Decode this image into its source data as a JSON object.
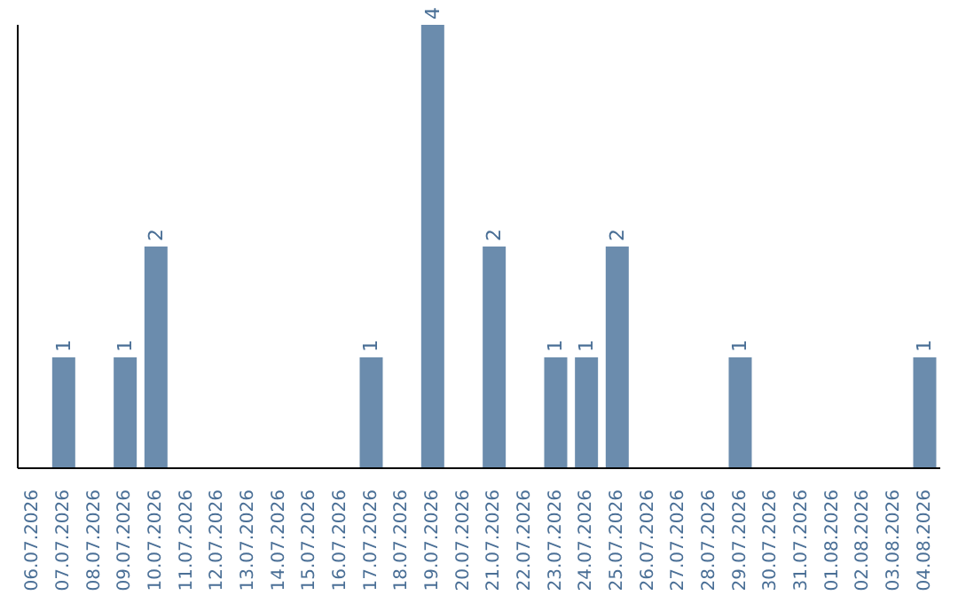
{
  "chart_data": {
    "type": "bar",
    "categories": [
      "06.07.2026",
      "07.07.2026",
      "08.07.2026",
      "09.07.2026",
      "10.07.2026",
      "11.07.2026",
      "12.07.2026",
      "13.07.2026",
      "14.07.2026",
      "15.07.2026",
      "16.07.2026",
      "17.07.2026",
      "18.07.2026",
      "19.07.2026",
      "20.07.2026",
      "21.07.2026",
      "22.07.2026",
      "23.07.2026",
      "24.07.2026",
      "25.07.2026",
      "26.07.2026",
      "27.07.2026",
      "28.07.2026",
      "29.07.2026",
      "30.07.2026",
      "31.07.2026",
      "01.08.2026",
      "02.08.2026",
      "03.08.2026",
      "04.08.2026"
    ],
    "values": [
      0,
      1,
      0,
      1,
      2,
      0,
      0,
      0,
      0,
      0,
      0,
      1,
      0,
      4,
      0,
      2,
      0,
      1,
      1,
      2,
      0,
      0,
      0,
      1,
      0,
      0,
      0,
      0,
      0,
      1
    ],
    "value_labels": [
      null,
      "1",
      null,
      "1",
      "2",
      null,
      null,
      null,
      null,
      null,
      null,
      "1",
      null,
      "4",
      null,
      "2",
      null,
      "1",
      "1",
      "2",
      null,
      null,
      null,
      "1",
      null,
      null,
      null,
      null,
      null,
      "1"
    ],
    "color": "#6b8cad",
    "tick_labels": "x",
    "grid": false
  }
}
